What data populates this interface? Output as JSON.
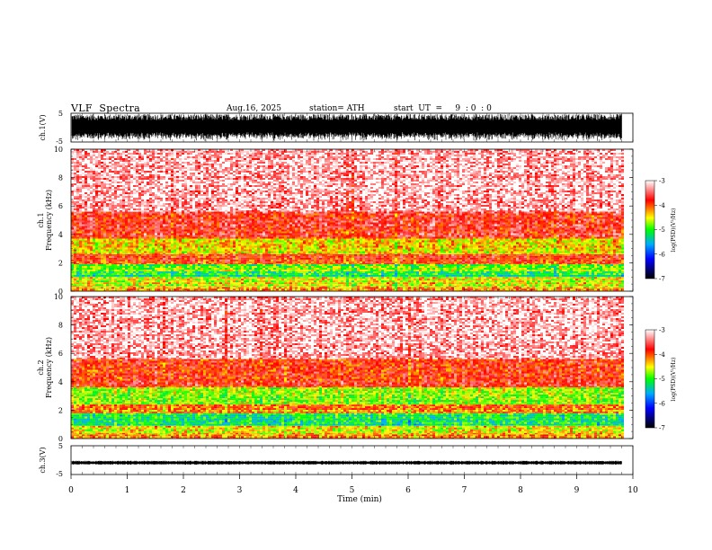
{
  "header": {
    "title": "VLF  Spectra",
    "date": "Aug.16, 2025",
    "station": "station= ATH",
    "start_ut": "start  UT  =     9  : 0  : 0"
  },
  "colors": {
    "background": "#ffffff",
    "colormap": [
      "#000000",
      "#0000ff",
      "#00aaff",
      "#00ff00",
      "#ffff00",
      "#ff0000",
      "#ffffff"
    ]
  },
  "chart_data": [
    {
      "type": "line",
      "ylabel": "ch.1(V)",
      "ylim": [
        -5,
        5
      ],
      "yticks": [
        "5",
        "-5"
      ],
      "xlim": [
        0,
        9.8
      ],
      "description_note": "dense broadband noise filling full range"
    },
    {
      "type": "heatmap",
      "ylabel_line1": "ch.1",
      "ylabel_line2": "Frequency  (kHz)",
      "ylim": [
        0,
        10
      ],
      "yticks": [
        "0",
        "2",
        "4",
        "6",
        "8",
        "10"
      ],
      "xlim": [
        0,
        9.8
      ],
      "bands_khz": [
        {
          "from": 0.0,
          "to": 0.3,
          "level": -4.2
        },
        {
          "from": 0.3,
          "to": 1.0,
          "level": -4.5
        },
        {
          "from": 1.0,
          "to": 1.4,
          "level": -5.1
        },
        {
          "from": 1.4,
          "to": 1.9,
          "level": -4.8
        },
        {
          "from": 1.9,
          "to": 2.6,
          "level": -3.9
        },
        {
          "from": 2.6,
          "to": 3.7,
          "level": -4.4
        },
        {
          "from": 3.7,
          "to": 5.6,
          "level": -3.7
        },
        {
          "from": 5.6,
          "to": 10.0,
          "level": -3.2
        }
      ],
      "colorbar": {
        "label": "log(PSD)(V²/Hz)",
        "ticks": [
          "-3",
          "-4",
          "-5",
          "-6",
          "-7"
        ],
        "range": [
          -7,
          -3
        ]
      }
    },
    {
      "type": "heatmap",
      "ylabel_line1": "ch.2",
      "ylabel_line2": "Frequency  (kHz)",
      "ylim": [
        0,
        10
      ],
      "yticks": [
        "0",
        "2",
        "4",
        "6",
        "8",
        "10"
      ],
      "xlim": [
        0,
        9.8
      ],
      "bands_khz": [
        {
          "from": 0.0,
          "to": 0.3,
          "level": -4.1
        },
        {
          "from": 0.3,
          "to": 0.9,
          "level": -4.4
        },
        {
          "from": 0.9,
          "to": 1.8,
          "level": -5.1
        },
        {
          "from": 1.8,
          "to": 2.4,
          "level": -4.1
        },
        {
          "from": 2.4,
          "to": 3.6,
          "level": -4.7
        },
        {
          "from": 3.6,
          "to": 5.6,
          "level": -3.8
        },
        {
          "from": 5.6,
          "to": 10.0,
          "level": -3.2
        }
      ],
      "colorbar": {
        "label": "log(PSD)(V²/Hz)",
        "ticks": [
          "-3",
          "-4",
          "-5",
          "-6",
          "-7"
        ],
        "range": [
          -7,
          -3
        ]
      }
    },
    {
      "type": "line",
      "ylabel": "ch.3(V)",
      "ylim": [
        -5,
        5
      ],
      "yticks": [
        "5",
        "-5"
      ],
      "xlim": [
        0,
        9.8
      ],
      "baseline_v": -0.9
    }
  ],
  "xaxis": {
    "label": "Time  (min)",
    "ticks": [
      "0",
      "1",
      "2",
      "3",
      "4",
      "5",
      "6",
      "7",
      "8",
      "9",
      "10"
    ],
    "range": [
      0,
      10
    ]
  }
}
